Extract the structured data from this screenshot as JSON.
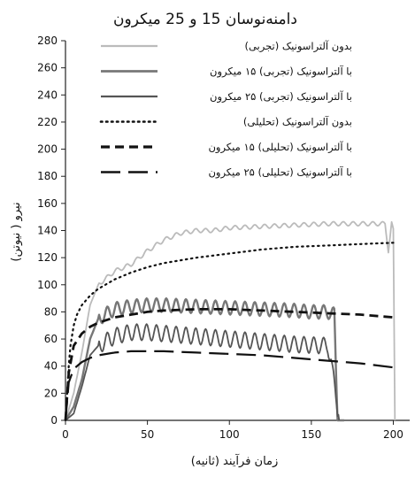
{
  "chart_data": {
    "type": "line",
    "title": "دامنه‌نوسان 15 و 25 میکرون",
    "xlabel": "زمان فرآیند (ثانیه)",
    "ylabel": "نیرو ( نیوتن)",
    "xlim": [
      0,
      210
    ],
    "ylim": [
      0,
      280
    ],
    "x_ticks": [
      0,
      50,
      100,
      150,
      200
    ],
    "y_ticks": [
      0,
      20,
      40,
      60,
      80,
      100,
      120,
      140,
      160,
      180,
      200,
      220,
      240,
      260,
      280
    ],
    "grid": false,
    "legend_position": "top-center",
    "series": [
      {
        "name": "بدون آلتراسونیک (تجربی)",
        "color": "#bbbbbb",
        "style": "solid",
        "kind": "experimental",
        "x": [
          0,
          5,
          10,
          15,
          20,
          30,
          40,
          50,
          60,
          70,
          80,
          90,
          100,
          120,
          140,
          160,
          180,
          195,
          197,
          199,
          200,
          201
        ],
        "y": [
          0,
          20,
          50,
          85,
          100,
          110,
          115,
          125,
          133,
          138,
          140,
          140,
          142,
          143,
          144,
          145,
          145,
          145,
          125,
          145,
          140,
          0
        ],
        "wiggle": 3,
        "period": 6
      },
      {
        "name": "با آلتراسونیک (تجربی) ۱۵ میکرون",
        "color": "#777777",
        "style": "solid",
        "kind": "experimental",
        "x": [
          0,
          5,
          10,
          15,
          20,
          30,
          40,
          50,
          60,
          80,
          100,
          120,
          140,
          150,
          160,
          164,
          166,
          170
        ],
        "y": [
          0,
          10,
          30,
          60,
          75,
          82,
          84,
          85,
          85,
          84,
          83,
          82,
          81,
          80,
          80,
          78,
          0,
          0
        ],
        "wiggle": 10,
        "period": 6
      },
      {
        "name": "با آلتراسونیک (تجربی) ۲۵ میکرون",
        "color": "#555555",
        "style": "solid",
        "kind": "experimental",
        "x": [
          0,
          5,
          10,
          15,
          20,
          30,
          40,
          50,
          60,
          80,
          100,
          120,
          140,
          160,
          162,
          164,
          167
        ],
        "y": [
          0,
          5,
          25,
          48,
          55,
          62,
          65,
          65,
          64,
          62,
          60,
          58,
          56,
          55,
          45,
          25,
          0
        ],
        "wiggle": 12,
        "period": 6
      },
      {
        "name": "بدون آلتراسونیک (تحلیلی)",
        "color": "#111111",
        "style": "dotted",
        "kind": "analytical",
        "x": [
          0,
          1,
          2,
          3,
          5,
          7,
          10,
          15,
          20,
          30,
          40,
          50,
          60,
          80,
          100,
          120,
          140,
          160,
          180,
          200
        ],
        "y": [
          0,
          20,
          40,
          55,
          70,
          78,
          85,
          92,
          97,
          104,
          109,
          113,
          116,
          120,
          123,
          126,
          128,
          129,
          130,
          131
        ],
        "wiggle": 0,
        "period": 0
      },
      {
        "name": "با آلتراسونیک (تحلیلی) ۱۵ میکرون",
        "color": "#111111",
        "style": "dashed",
        "kind": "analytical",
        "x": [
          0,
          2,
          5,
          10,
          15,
          20,
          30,
          40,
          50,
          60,
          80,
          100,
          120,
          140,
          160,
          180,
          200
        ],
        "y": [
          0,
          35,
          55,
          64,
          69,
          72,
          76,
          78,
          80,
          81,
          82,
          82,
          81,
          80,
          79,
          78,
          76
        ],
        "wiggle": 0,
        "period": 0
      },
      {
        "name": "با آلتراسونیک (تحلیلی) ۲۵ میکرون",
        "color": "#111111",
        "style": "longdash",
        "kind": "analytical",
        "x": [
          0,
          2,
          5,
          10,
          15,
          20,
          30,
          40,
          50,
          60,
          80,
          100,
          120,
          140,
          160,
          180,
          200
        ],
        "y": [
          0,
          28,
          38,
          43,
          46,
          48,
          50,
          51,
          51,
          51,
          50,
          49,
          48,
          46,
          44,
          42,
          39
        ],
        "wiggle": 0,
        "period": 0
      }
    ]
  }
}
